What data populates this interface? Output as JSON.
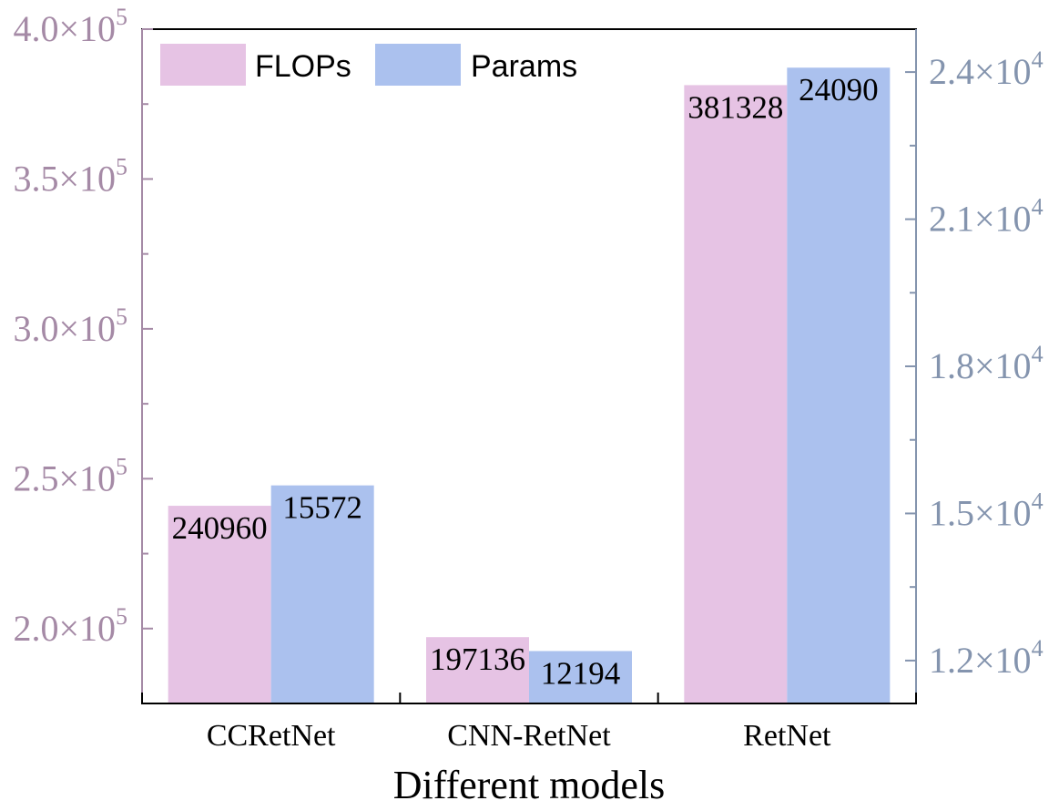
{
  "chart_data": {
    "type": "bar",
    "categories": [
      "CCRetNet",
      "CNN-RetNet",
      "RetNet"
    ],
    "xlabel": "Different models",
    "series": [
      {
        "name": "FLOPs",
        "values": [
          240960,
          197136,
          381328
        ],
        "color": "#e6c3e4",
        "axis": "left"
      },
      {
        "name": "Params",
        "values": [
          15572,
          12194,
          24090
        ],
        "color": "#abc1ee",
        "axis": "right"
      }
    ],
    "left_axis": {
      "ylim": [
        175000,
        400000
      ],
      "ticks": [
        {
          "value": 200000,
          "mant": "2.0×10",
          "exp": "5"
        },
        {
          "value": 250000,
          "mant": "2.5×10",
          "exp": "5"
        },
        {
          "value": 300000,
          "mant": "3.0×10",
          "exp": "5"
        },
        {
          "value": 350000,
          "mant": "3.5×10",
          "exp": "5"
        },
        {
          "value": 400000,
          "mant": "4.0×10",
          "exp": "5"
        }
      ],
      "minor": [
        225000,
        275000,
        325000,
        375000
      ],
      "color": "#a58aa6"
    },
    "right_axis": {
      "ylim": [
        11125,
        24875
      ],
      "ticks": [
        {
          "value": 12000,
          "mant": "1.2×10",
          "exp": "4"
        },
        {
          "value": 15000,
          "mant": "1.5×10",
          "exp": "4"
        },
        {
          "value": 18000,
          "mant": "1.8×10",
          "exp": "4"
        },
        {
          "value": 21000,
          "mant": "2.1×10",
          "exp": "4"
        },
        {
          "value": 24000,
          "mant": "2.4×10",
          "exp": "4"
        }
      ],
      "minor": [
        13500,
        16500,
        19500,
        22500
      ],
      "color": "#8494ae"
    },
    "legend_position": "top-left",
    "grid": false
  }
}
